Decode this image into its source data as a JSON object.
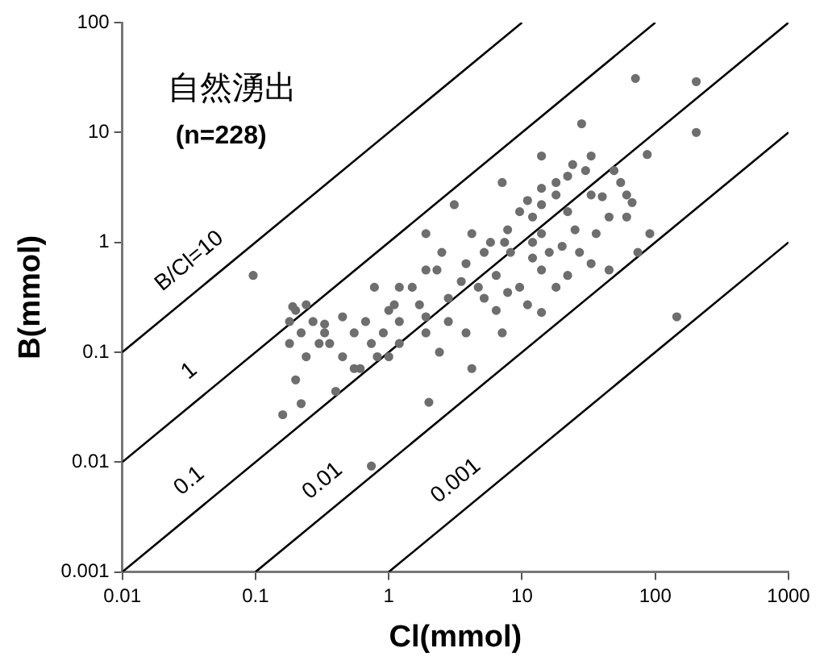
{
  "chart_data": {
    "type": "scatter",
    "xlabel": "Cl(mmol)",
    "ylabel": "B(mmol)",
    "annotations": [
      "自然湧出",
      "(n=228)"
    ],
    "log": "xy",
    "grid": false,
    "legend": false,
    "xlim": [
      0.01,
      1000
    ],
    "ylim": [
      0.001,
      100
    ],
    "xticks": [
      0.01,
      0.1,
      1,
      10,
      100,
      1000
    ],
    "yticks": [
      0.001,
      0.01,
      0.1,
      1,
      10,
      100
    ],
    "series": [
      {
        "color": "#6e6e6e",
        "marker": "circle",
        "x": [
          71,
          203,
          203,
          28,
          0.096,
          145,
          0.74,
          2.0,
          87,
          14,
          33,
          24,
          22,
          18,
          30,
          55,
          67,
          9.6,
          12,
          14,
          7.1,
          3.1,
          1.9,
          4.2,
          5.8,
          7.4,
          2.5,
          3.8,
          1.9,
          1.5,
          0.78,
          1.1,
          1.7,
          2.8,
          3.5,
          4.7,
          6.4,
          9.6,
          11,
          14,
          7.1,
          4.2,
          2.4,
          1.9,
          1.2,
          0.91,
          0.74,
          0.61,
          0.45,
          0.33,
          0.27,
          0.2,
          0.24,
          0.18,
          0.2,
          0.16,
          0.22,
          0.4,
          0.55,
          1.0,
          0.19,
          0.33,
          0.36,
          0.45,
          0.67,
          14,
          16,
          20,
          27,
          36,
          45,
          61,
          91,
          74,
          45,
          33,
          22,
          5.2,
          8.2,
          12,
          14,
          18,
          25,
          40,
          49,
          61,
          33,
          22,
          18,
          14,
          11,
          7.8,
          2.3,
          1.2,
          1.0,
          0.55,
          0.3,
          0.22,
          12,
          3.8,
          2.8,
          5.2,
          7.8,
          6.4,
          1.9,
          1.2,
          0.82,
          0.24,
          0.18
        ],
        "values": [
          31,
          29,
          10,
          12,
          0.5,
          0.21,
          0.0092,
          0.035,
          6.3,
          6.1,
          6.1,
          5.1,
          4.0,
          3.5,
          4.5,
          3.5,
          2.3,
          1.9,
          1.7,
          2.2,
          3.5,
          2.2,
          1.2,
          1.2,
          1.0,
          1.0,
          0.81,
          0.64,
          0.56,
          0.39,
          0.39,
          0.27,
          0.27,
          0.31,
          0.44,
          0.39,
          0.5,
          0.39,
          0.27,
          0.23,
          0.15,
          0.071,
          0.1,
          0.15,
          0.19,
          0.15,
          0.12,
          0.071,
          0.091,
          0.15,
          0.19,
          0.24,
          0.091,
          0.12,
          0.056,
          0.027,
          0.034,
          0.044,
          0.071,
          0.091,
          0.26,
          0.18,
          0.12,
          0.21,
          0.19,
          1.2,
          0.81,
          0.92,
          0.81,
          1.2,
          1.7,
          1.7,
          1.2,
          0.81,
          0.56,
          0.64,
          0.5,
          0.81,
          0.81,
          0.72,
          0.56,
          0.39,
          1.3,
          2.6,
          4.5,
          2.7,
          2.7,
          1.9,
          2.7,
          3.1,
          2.4,
          1.3,
          0.56,
          0.39,
          0.24,
          0.15,
          0.12,
          0.15,
          1.0,
          0.15,
          0.19,
          0.31,
          0.35,
          0.24,
          0.21,
          0.12,
          0.091,
          0.27,
          0.19
        ]
      },
      {
        "type": "line",
        "name": "B/Cl=10",
        "color": "#000000",
        "marker": "none",
        "x": [
          0.01,
          10
        ],
        "values": [
          0.1,
          100
        ]
      },
      {
        "type": "line",
        "name": "1",
        "color": "#000000",
        "marker": "none",
        "x": [
          0.01,
          100
        ],
        "values": [
          0.01,
          100
        ]
      },
      {
        "type": "line",
        "name": "0.1",
        "color": "#000000",
        "marker": "none",
        "x": [
          0.01,
          1000
        ],
        "values": [
          0.001,
          100
        ]
      },
      {
        "type": "line",
        "name": "0.01",
        "color": "#000000",
        "marker": "none",
        "x": [
          0.1,
          1000
        ],
        "values": [
          0.001,
          10
        ]
      },
      {
        "type": "line",
        "name": "0.001",
        "color": "#000000",
        "marker": "none",
        "x": [
          1,
          1000
        ],
        "values": [
          0.001,
          1
        ]
      }
    ]
  }
}
